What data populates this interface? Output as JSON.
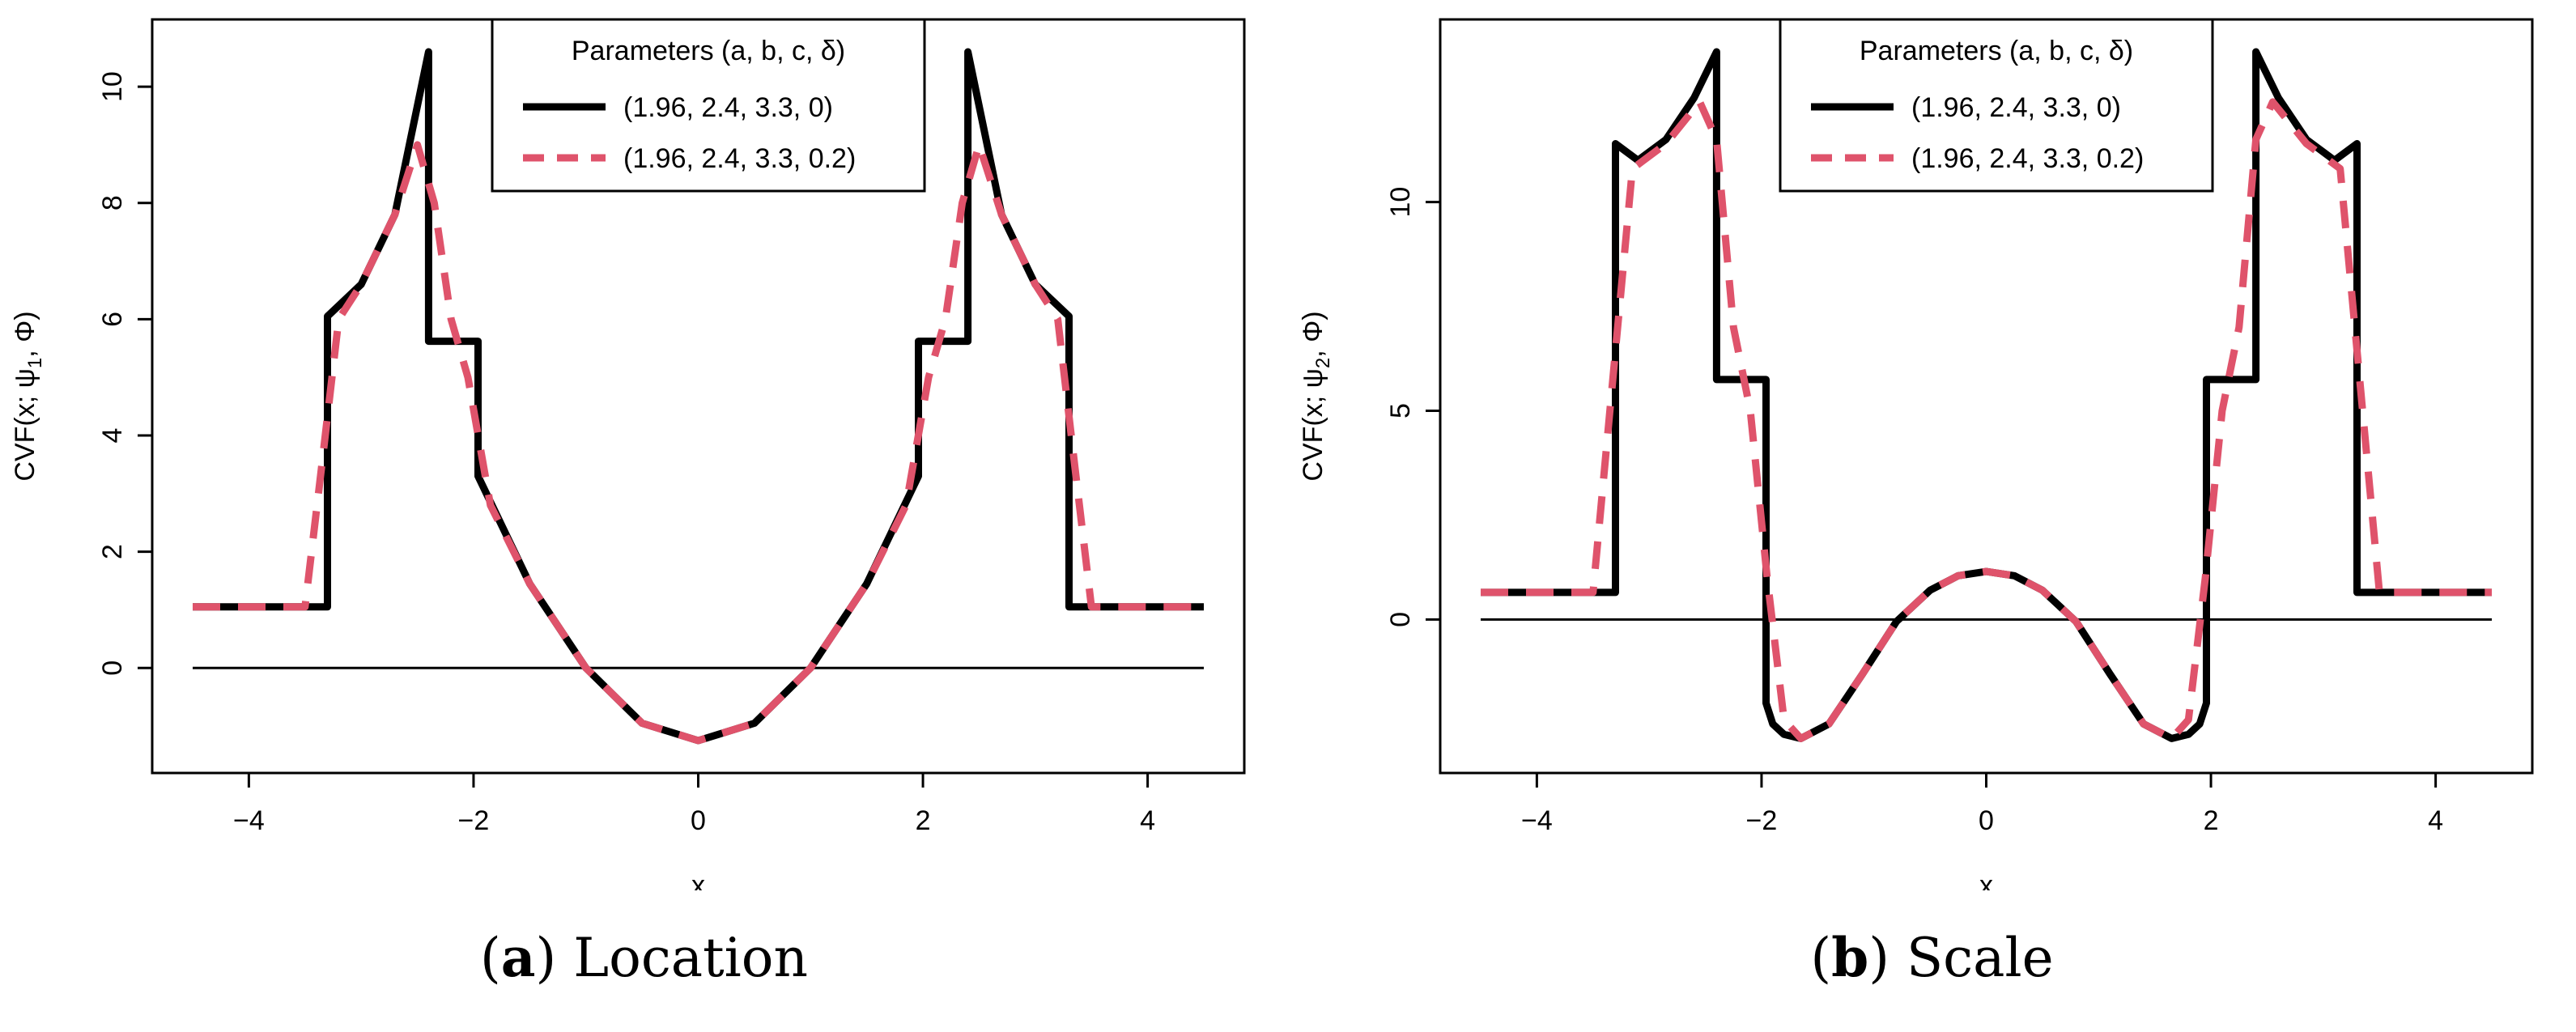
{
  "chart_data": [
    {
      "type": "line",
      "caption_label": "a",
      "caption_text": "Location",
      "xlabel": "x",
      "ylabel": "CVF(x; ψ1, Φ)",
      "ylabel_parts": [
        "CVF(x; ψ",
        "1",
        ", Φ)"
      ],
      "xlim": [
        -4.5,
        4.5
      ],
      "ylim": [
        -1.25,
        10.6
      ],
      "xticks": [
        -4,
        -2,
        0,
        2,
        4
      ],
      "xtick_labels": [
        "−4",
        "−2",
        "0",
        "2",
        "4"
      ],
      "yticks": [
        0,
        2,
        4,
        6,
        8,
        10
      ],
      "ytick_labels": [
        "0",
        "2",
        "4",
        "6",
        "8",
        "10"
      ],
      "legend": {
        "title": "Parameters (a, b, c, δ)",
        "position": "top-center",
        "entries": [
          "(1.96, 2.4, 3.3, 0)",
          "(1.96, 2.4, 3.3, 0.2)"
        ]
      },
      "reference_line_y": 0,
      "series": [
        {
          "name": "(1.96, 2.4, 3.3, 0)",
          "color": "#000000",
          "style": "solid",
          "x": [
            -4.5,
            -3.3,
            -3.3,
            -3.0,
            -2.7,
            -2.4,
            -2.4,
            -1.96,
            -1.96,
            -1.5,
            -1.0,
            -0.5,
            0,
            0.5,
            1.0,
            1.5,
            1.96,
            1.96,
            2.4,
            2.4,
            2.7,
            3.0,
            3.3,
            3.3,
            4.5
          ],
          "y": [
            1.05,
            1.05,
            6.05,
            6.6,
            7.8,
            10.6,
            5.62,
            5.62,
            3.3,
            1.45,
            0.0,
            -0.95,
            -1.25,
            -0.95,
            0.0,
            1.45,
            3.3,
            5.62,
            5.62,
            10.6,
            7.8,
            6.6,
            6.05,
            1.05,
            1.05
          ]
        },
        {
          "name": "(1.96, 2.4, 3.3, 0.2)",
          "color": "#DF536B",
          "style": "dashed",
          "x": [
            -4.5,
            -3.5,
            -3.35,
            -3.2,
            -3.0,
            -2.7,
            -2.5,
            -2.35,
            -2.2,
            -2.05,
            -1.85,
            -1.5,
            -1.0,
            -0.5,
            0,
            0.5,
            1.0,
            1.5,
            1.85,
            2.05,
            2.2,
            2.35,
            2.5,
            2.7,
            3.0,
            3.2,
            3.35,
            3.5,
            4.5
          ],
          "y": [
            1.05,
            1.05,
            3.5,
            6.0,
            6.6,
            7.8,
            9.0,
            8.0,
            6.0,
            5.0,
            2.8,
            1.45,
            0.0,
            -0.95,
            -1.25,
            -0.95,
            0.0,
            1.45,
            2.8,
            5.0,
            6.0,
            8.0,
            9.0,
            7.8,
            6.6,
            6.0,
            3.5,
            1.05,
            1.05
          ]
        }
      ]
    },
    {
      "type": "line",
      "caption_label": "b",
      "caption_text": "Scale",
      "xlabel": "x",
      "ylabel": "CVF(x; ψ2, Φ)",
      "ylabel_parts": [
        "CVF(x; ψ",
        "2",
        ", Φ)"
      ],
      "xlim": [
        -4.5,
        4.5
      ],
      "ylim": [
        -2.9,
        13.6
      ],
      "xticks": [
        -4,
        -2,
        0,
        2,
        4
      ],
      "xtick_labels": [
        "−4",
        "−2",
        "0",
        "2",
        "4"
      ],
      "yticks": [
        0,
        5,
        10
      ],
      "ytick_labels": [
        "0",
        "5",
        "10"
      ],
      "legend": {
        "title": "Parameters (a, b, c, δ)",
        "position": "top-center",
        "entries": [
          "(1.96, 2.4, 3.3, 0)",
          "(1.96, 2.4, 3.3, 0.2)"
        ]
      },
      "reference_line_y": 0,
      "series": [
        {
          "name": "(1.96, 2.4, 3.3, 0)",
          "color": "#000000",
          "style": "solid",
          "x": [
            -4.5,
            -3.3,
            -3.3,
            -3.1,
            -2.85,
            -2.6,
            -2.4,
            -2.4,
            -1.96,
            -1.96,
            -1.9,
            -1.8,
            -1.65,
            -1.4,
            -1.1,
            -0.8,
            -0.5,
            -0.25,
            0,
            0.25,
            0.5,
            0.8,
            1.1,
            1.4,
            1.65,
            1.8,
            1.9,
            1.96,
            1.96,
            2.4,
            2.4,
            2.6,
            2.85,
            3.1,
            3.3,
            3.3,
            4.5
          ],
          "y": [
            0.65,
            0.65,
            11.4,
            11.0,
            11.5,
            12.5,
            13.6,
            5.75,
            5.75,
            -2.0,
            -2.5,
            -2.75,
            -2.85,
            -2.5,
            -1.3,
            -0.05,
            0.7,
            1.05,
            1.15,
            1.05,
            0.7,
            -0.05,
            -1.3,
            -2.5,
            -2.85,
            -2.75,
            -2.5,
            -2.0,
            5.75,
            5.75,
            13.6,
            12.5,
            11.5,
            11.0,
            11.4,
            0.65,
            0.65
          ]
        },
        {
          "name": "(1.96, 2.4, 3.3, 0.2)",
          "color": "#DF536B",
          "style": "dashed",
          "x": [
            -4.5,
            -3.5,
            -3.35,
            -3.15,
            -2.85,
            -2.55,
            -2.4,
            -2.25,
            -2.1,
            -1.95,
            -1.8,
            -1.65,
            -1.4,
            -1.1,
            -0.8,
            -0.5,
            -0.25,
            0,
            0.25,
            0.5,
            0.8,
            1.1,
            1.4,
            1.65,
            1.8,
            1.95,
            2.1,
            2.25,
            2.4,
            2.55,
            2.85,
            3.15,
            3.35,
            3.5,
            4.5
          ],
          "y": [
            0.65,
            0.65,
            5.0,
            10.8,
            11.4,
            12.4,
            11.5,
            7.0,
            5.0,
            1.0,
            -2.4,
            -2.85,
            -2.5,
            -1.3,
            -0.05,
            0.7,
            1.05,
            1.15,
            1.05,
            0.7,
            -0.05,
            -1.3,
            -2.5,
            -2.85,
            -2.4,
            1.0,
            5.0,
            7.0,
            11.5,
            12.4,
            11.4,
            10.8,
            5.0,
            0.65,
            0.65
          ]
        }
      ]
    }
  ]
}
